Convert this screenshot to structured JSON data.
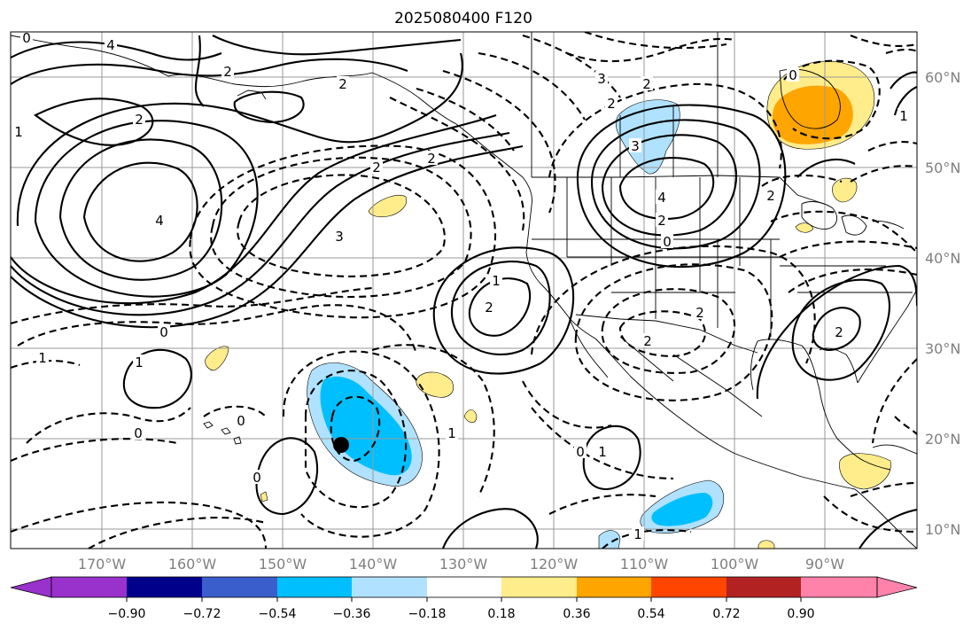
{
  "title": "2025080400 F120",
  "map": {
    "lat_labels": [
      "60°N",
      "50°N",
      "40°N",
      "30°N",
      "20°N",
      "10°N"
    ],
    "lon_labels": [
      "170°W",
      "160°W",
      "150°W",
      "140°W",
      "130°W",
      "120°W",
      "110°W",
      "100°W",
      "90°W"
    ],
    "contour_labels": {
      "pos": [
        "4",
        "2",
        "2",
        "4",
        "3",
        "4",
        "2",
        "1",
        "2",
        "1",
        "2",
        "2",
        "1",
        "0",
        "0",
        "1",
        "1",
        "0"
      ],
      "neg": [
        "3",
        "2",
        "2",
        "3",
        "2",
        "2",
        "2",
        "2",
        "1",
        "1",
        "2",
        "1",
        "0",
        "0",
        "0",
        "0",
        "0"
      ]
    },
    "marker": "storm-center-dot"
  },
  "colorbar": {
    "ticks": [
      "−0.90",
      "−0.72",
      "−0.54",
      "−0.36",
      "−0.18",
      "0.18",
      "0.36",
      "0.54",
      "0.72",
      "0.90"
    ],
    "colors": [
      "#9932cc",
      "#00008b",
      "#3a5fcd",
      "#00bfff",
      "#b0e2ff",
      "#ffffff",
      "#ffec8b",
      "#ffa500",
      "#ff4500",
      "#b22222",
      "#ff82ab"
    ]
  }
}
